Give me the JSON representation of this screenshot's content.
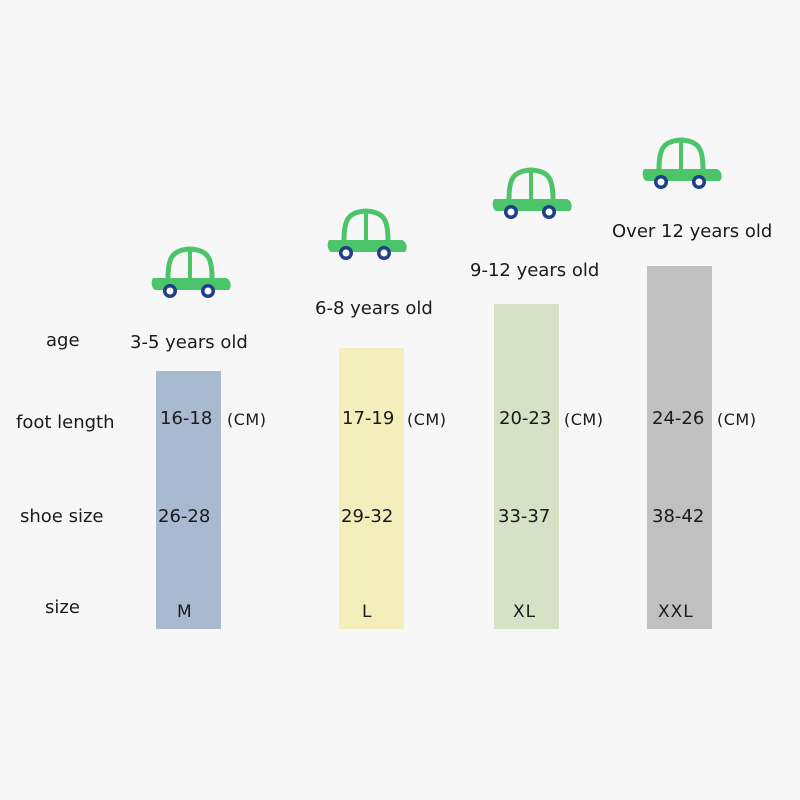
{
  "row_labels": {
    "age": "age",
    "foot_length": "foot length",
    "shoe_size": "shoe size",
    "size": "size"
  },
  "columns": [
    {
      "age": "3-5 years old",
      "foot_length": "16-18",
      "unit": "(CM)",
      "shoe_size": "26-28",
      "size": "M",
      "bar_color": "#a9bad0"
    },
    {
      "age": "6-8 years old",
      "foot_length": "17-19",
      "unit": "(CM)",
      "shoe_size": "29-32",
      "size": "L",
      "bar_color": "#f4eebd"
    },
    {
      "age": "9-12 years old",
      "foot_length": "20-23",
      "unit": "(CM)",
      "shoe_size": "33-37",
      "size": "XL",
      "bar_color": "#d5e2c6"
    },
    {
      "age": "Over 12 years old",
      "foot_length": "24-26",
      "unit": "(CM)",
      "shoe_size": "38-42",
      "size": "XXL",
      "bar_color": "#c0c0c0"
    }
  ],
  "icons": {
    "car": "car-icon"
  },
  "colors": {
    "car_body": "#4cc46a",
    "wheel_outer": "#1f3f88",
    "wheel_inner": "#ffffff"
  }
}
